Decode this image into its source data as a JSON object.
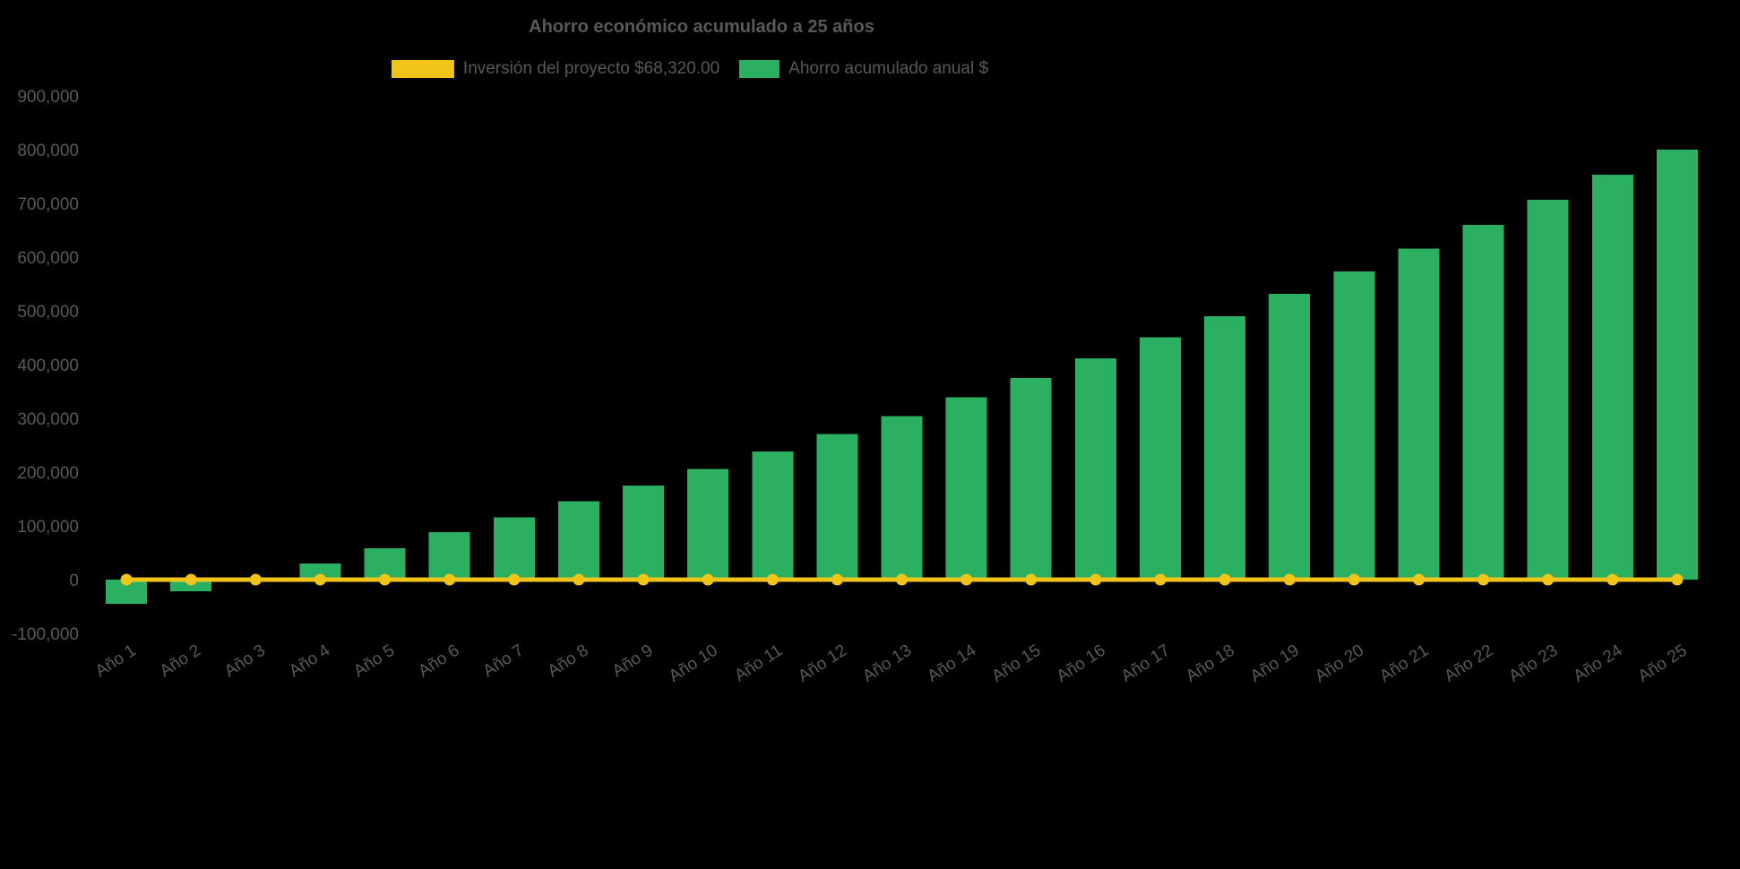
{
  "title": "Ahorro económico acumulado a 25 años",
  "legend": [
    {
      "label": "Inversión del proyecto $68,320.00",
      "color": "#F0C419",
      "style": "line"
    },
    {
      "label": "Ahorro acumulado anual $",
      "color": "#2BB062",
      "style": "bar"
    }
  ],
  "colors": {
    "background": "#000000",
    "text": "#58595B",
    "bar": "#2BB062",
    "line": "#F0C419"
  },
  "chart_data": {
    "type": "bar",
    "title": "Ahorro económico acumulado a 25 años",
    "categories": [
      "Año 1",
      "Año 2",
      "Año 3",
      "Año 4",
      "Año 5",
      "Año 6",
      "Año 7",
      "Año 8",
      "Año 9",
      "Año 10",
      "Año 11",
      "Año 12",
      "Año 13",
      "Año 14",
      "Año 15",
      "Año 16",
      "Año 17",
      "Año 18",
      "Año 19",
      "Año 20",
      "Año 21",
      "Año 22",
      "Año 23",
      "Año 24",
      "Año 25"
    ],
    "series": [
      {
        "name": "Ahorro acumulado anual $",
        "type": "bar",
        "color": "#2BB062",
        "values": [
          -45000,
          -22000,
          3000,
          30000,
          58000,
          88000,
          116000,
          146000,
          175000,
          206000,
          238000,
          271000,
          304000,
          339000,
          375000,
          412000,
          451000,
          490000,
          532000,
          573000,
          616000,
          660000,
          707000,
          753000,
          800000
        ]
      },
      {
        "name": "Inversión del proyecto $68,320.00",
        "type": "line",
        "color": "#F0C419",
        "values": [
          0,
          0,
          0,
          0,
          0,
          0,
          0,
          0,
          0,
          0,
          0,
          0,
          0,
          0,
          0,
          0,
          0,
          0,
          0,
          0,
          0,
          0,
          0,
          0,
          0
        ]
      }
    ],
    "xlabel": "",
    "ylabel": "",
    "ylim": [
      -100000,
      900000
    ],
    "ytick_step": 100000,
    "grid": false,
    "legend_position": "top"
  }
}
